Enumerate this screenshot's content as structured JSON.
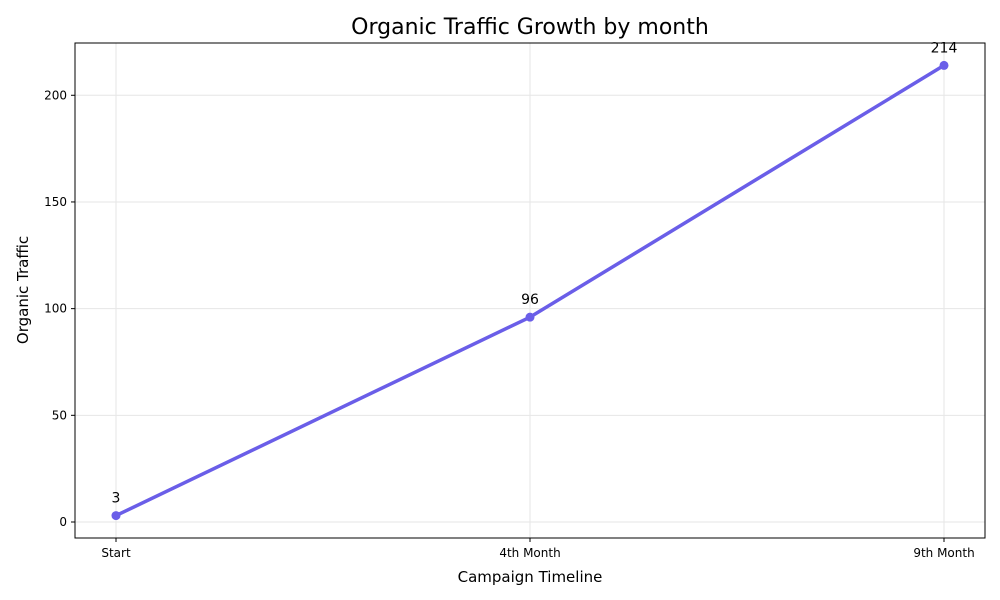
{
  "chart_data": {
    "type": "line",
    "title": "Organic Traffic Growth by month",
    "xlabel": "Campaign Timeline",
    "ylabel": "Organic Traffic",
    "categories": [
      "Start",
      "4th Month",
      "9th Month"
    ],
    "series": [
      {
        "values": [
          3,
          96,
          214
        ],
        "color": "#6a5ee8"
      }
    ],
    "data_labels": [
      "3",
      "96",
      "214"
    ],
    "ylim": [
      -7.5,
      224.5
    ],
    "yticks": [
      0,
      50,
      100,
      150,
      200
    ],
    "ytick_labels": [
      "0",
      "50",
      "100",
      "150",
      "200"
    ],
    "grid": true,
    "marker": "circle"
  }
}
